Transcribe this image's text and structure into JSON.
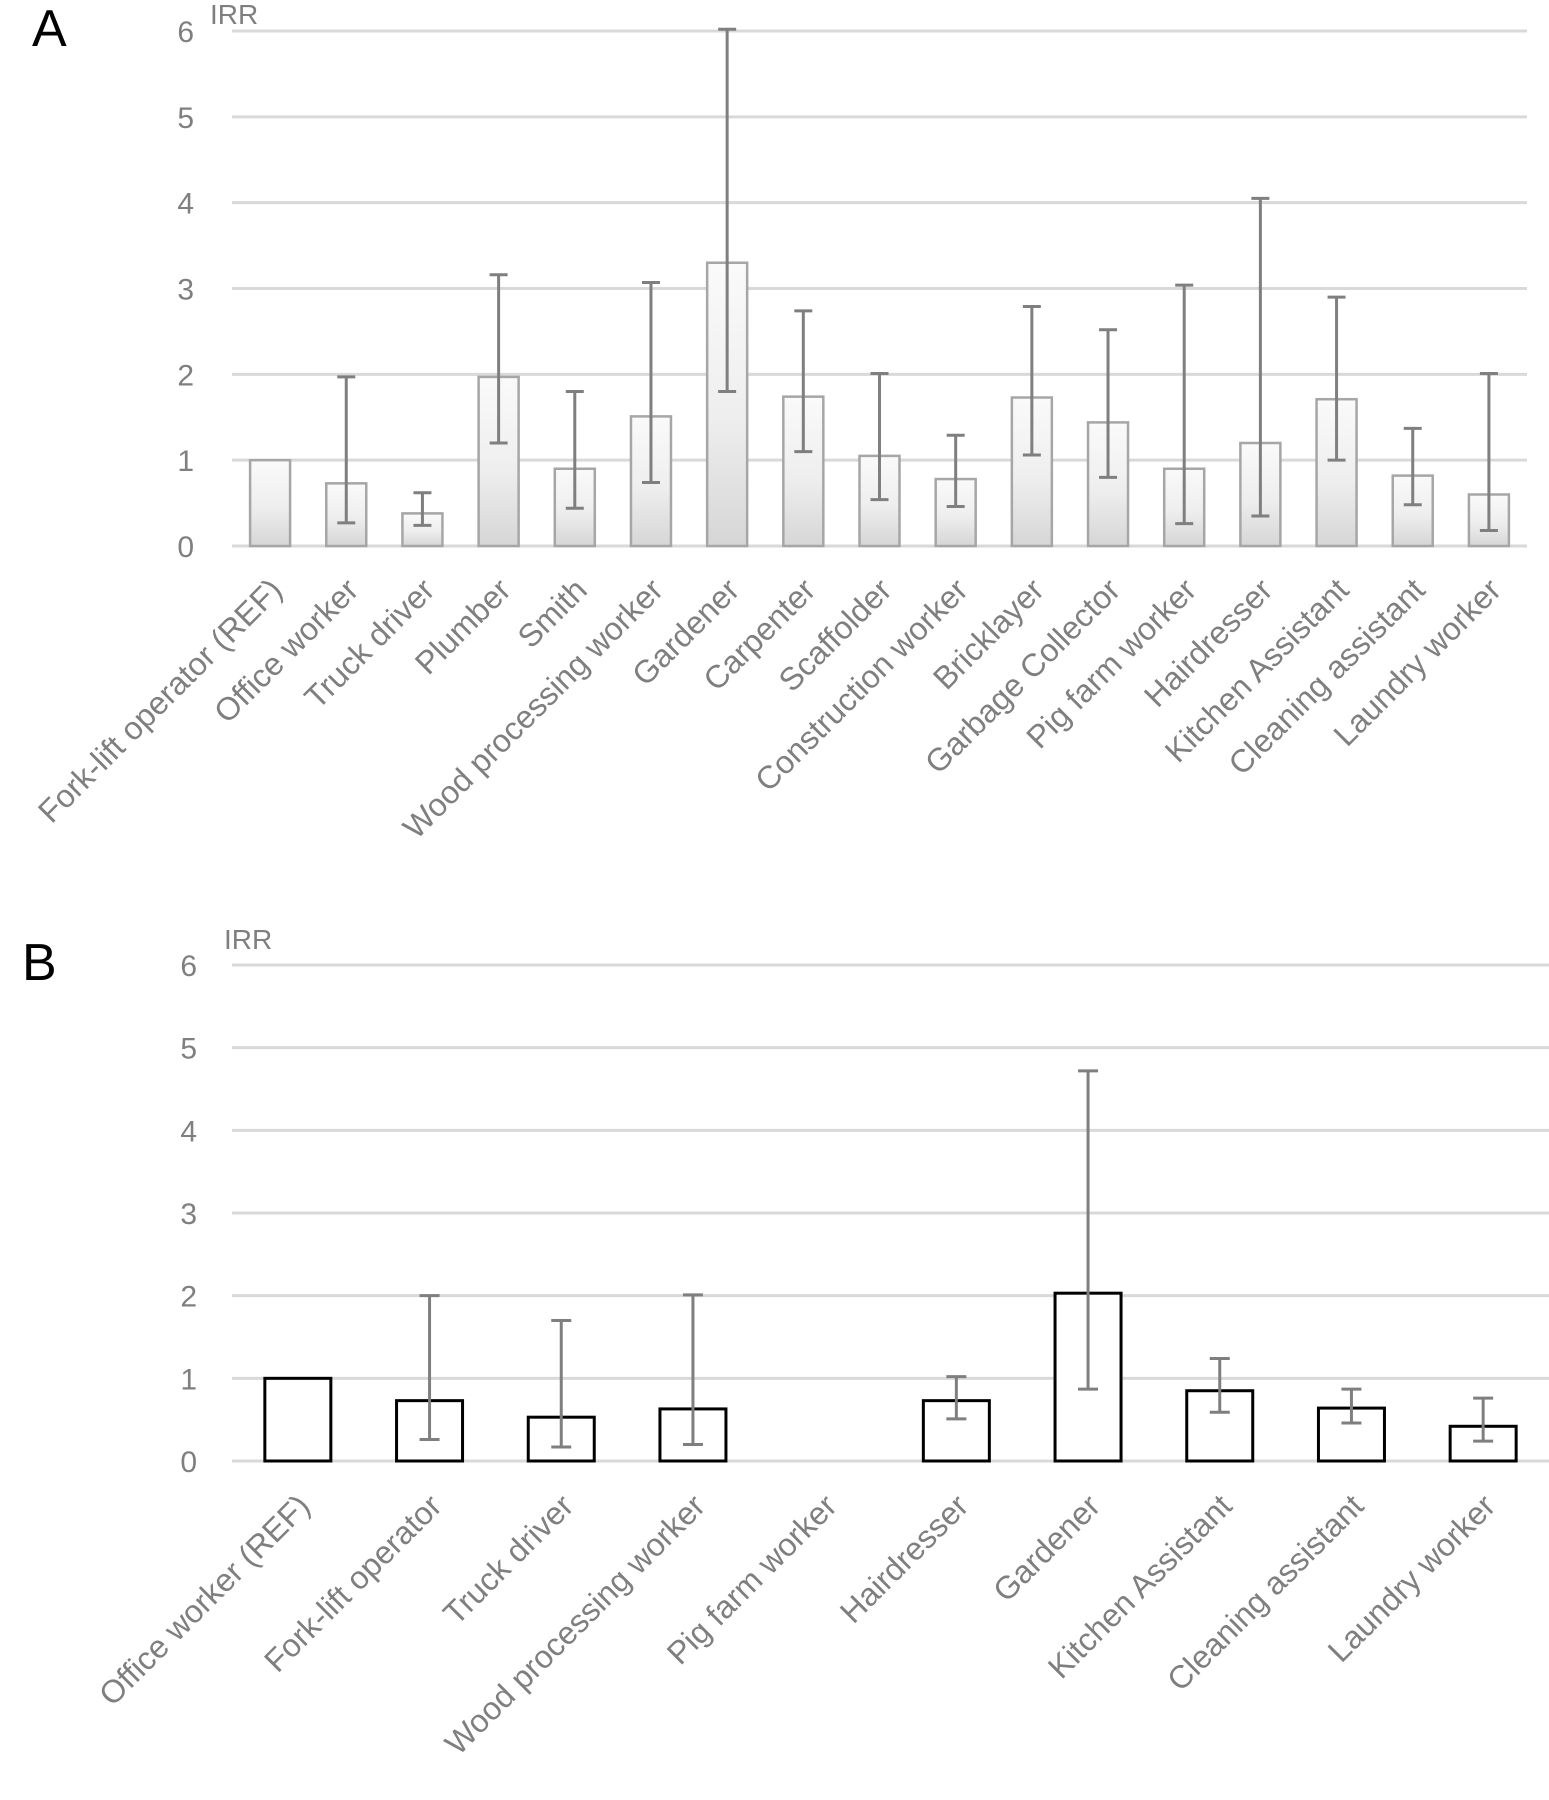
{
  "chart_data": [
    {
      "type": "bar",
      "panel_label": "A",
      "title": "",
      "ylabel": "IRR",
      "xlabel": "",
      "ylim": [
        0,
        6
      ],
      "yticks": [
        "0",
        "1",
        "2",
        "3",
        "4",
        "5",
        "6"
      ],
      "grid": true,
      "legend": "none",
      "bar_fill": "gradient-light-gray",
      "bar_stroke": "#a6a6a6",
      "error_color": "#7f7f7f",
      "categories": [
        "Fork-lift operator (REF)",
        "Office worker",
        "Truck driver",
        "Plumber",
        "Smith",
        "Wood processing worker",
        "Gardener",
        "Carpenter",
        "Scaffolder",
        "Construction worker",
        "Bricklayer",
        "Garbage Collector",
        "Pig farm worker",
        "Hairdresser",
        "Kitchen Assistant",
        "Cleaning assistant",
        "Laundry worker"
      ],
      "values": [
        1.0,
        0.73,
        0.38,
        1.97,
        0.9,
        1.51,
        3.3,
        1.74,
        1.05,
        0.78,
        1.73,
        1.44,
        0.9,
        1.2,
        1.71,
        0.82,
        0.6
      ],
      "ci_lower": [
        1.0,
        0.27,
        0.24,
        1.2,
        0.44,
        0.74,
        1.8,
        1.1,
        0.54,
        0.46,
        1.06,
        0.8,
        0.26,
        0.35,
        1.0,
        0.48,
        0.18
      ],
      "ci_upper": [
        1.0,
        1.97,
        0.62,
        3.16,
        1.8,
        3.07,
        6.02,
        2.74,
        2.01,
        1.29,
        2.79,
        2.52,
        3.04,
        4.05,
        2.9,
        1.37,
        2.01
      ]
    },
    {
      "type": "bar",
      "panel_label": "B",
      "title": "",
      "ylabel": "IRR",
      "xlabel": "",
      "ylim": [
        0,
        6
      ],
      "yticks": [
        "0",
        "1",
        "2",
        "3",
        "4",
        "5",
        "6"
      ],
      "grid": true,
      "legend": "none",
      "bar_fill": "#ffffff",
      "bar_stroke": "#000000",
      "error_color": "#7f7f7f",
      "categories": [
        "Office worker (REF)",
        "Fork-lift operator",
        "Truck driver",
        "Wood processing worker",
        "Pig farm worker",
        "Hairdresser",
        "Gardener",
        "Kitchen Assistant",
        "Cleaning assistant",
        "Laundry worker"
      ],
      "values": [
        1.0,
        0.73,
        0.53,
        0.63,
        0,
        0.73,
        2.03,
        0.85,
        0.64,
        0.42
      ],
      "ci_lower": [
        1.0,
        0.26,
        0.17,
        0.2,
        null,
        0.51,
        0.87,
        0.59,
        0.46,
        0.24
      ],
      "ci_upper": [
        1.0,
        2.0,
        1.7,
        2.01,
        null,
        1.02,
        4.72,
        1.24,
        0.87,
        0.76
      ]
    }
  ]
}
